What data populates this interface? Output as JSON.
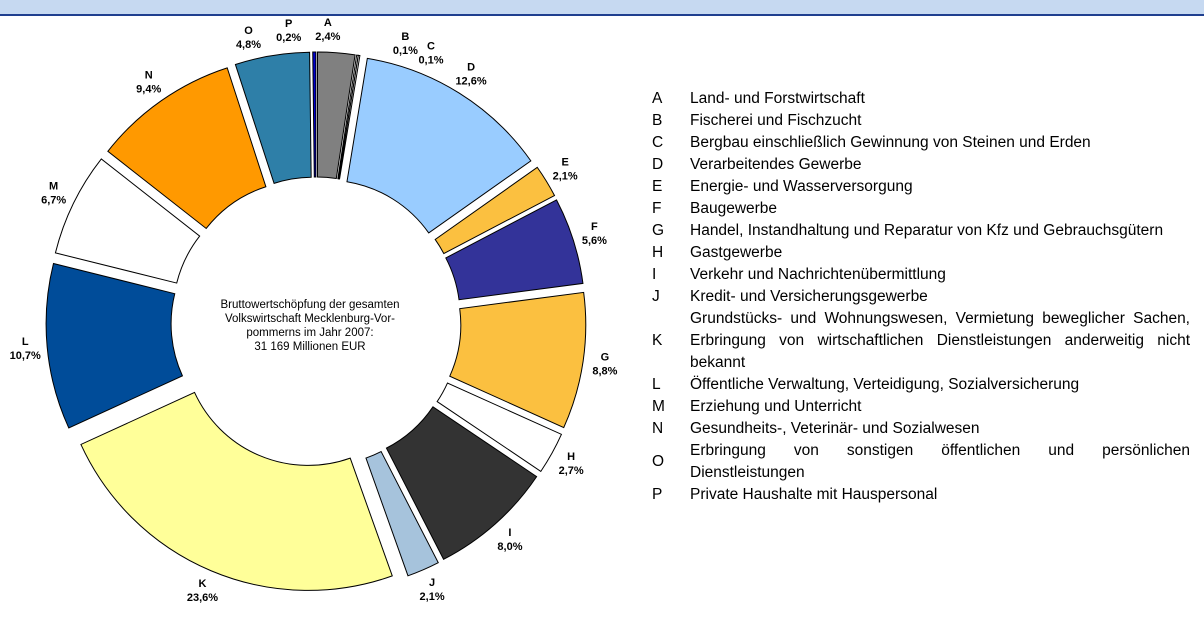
{
  "chart_data": {
    "type": "donut",
    "annotation": [
      "Bruttowertschöpfung der gesamten",
      "Volkswirtschaft Mecklenburg-Vor-",
      "pommerns im Jahr 2007:",
      "31 169 Millionen EUR"
    ],
    "categories": [
      "A",
      "B",
      "C",
      "D",
      "E",
      "F",
      "G",
      "H",
      "I",
      "J",
      "K",
      "L",
      "M",
      "N",
      "O",
      "P"
    ],
    "values": [
      2.4,
      0.1,
      0.1,
      12.6,
      2.1,
      5.6,
      8.8,
      2.7,
      8.0,
      2.1,
      23.6,
      10.7,
      6.7,
      9.4,
      4.8,
      0.2
    ],
    "value_labels": [
      "2,4%",
      "0,1%",
      "0,1%",
      "12,6%",
      "2,1%",
      "5,6%",
      "8,8%",
      "2,7%",
      "8,0%",
      "2,1%",
      "23,6%",
      "10,7%",
      "6,7%",
      "9,4%",
      "4,8%",
      "0,2%"
    ],
    "colors": [
      "#808080",
      "#ffffff",
      "#ffffff",
      "#99ccff",
      "#fbc040",
      "#333399",
      "#fbc040",
      "#ffffff",
      "#333333",
      "#a6c3dc",
      "#ffff99",
      "#004c99",
      "#ffffff",
      "#ff9900",
      "#2e7fa8",
      "#0000cc"
    ],
    "descriptions": [
      "Land- und Forstwirtschaft",
      "Fischerei und Fischzucht",
      "Bergbau einschließlich Gewinnung von Steinen und Erden",
      "Verarbeitendes Gewerbe",
      "Energie- und Wasserversorgung",
      "Baugewerbe",
      "Handel, Instandhaltung und Reparatur von Kfz und Gebrauchsgütern",
      "Gastgewerbe",
      "Verkehr und Nachrichtenübermittlung",
      "Kredit- und Versicherungsgewerbe",
      "Grundstücks- und Wohnungswesen, Vermietung beweglicher Sachen, Erbringung von wirtschaftlichen Dienstleistungen anderweitig nicht bekannt",
      "Öffentliche Verwaltung, Verteidigung, Sozialversicherung",
      "Erziehung und Unterricht",
      "Gesundheits-, Veterinär- und Sozialwesen",
      "Erbringung von sonstigen öffentlichen und persönlichen Dienstleistungen",
      "Private Haushalte mit Hauspersonal"
    ]
  }
}
